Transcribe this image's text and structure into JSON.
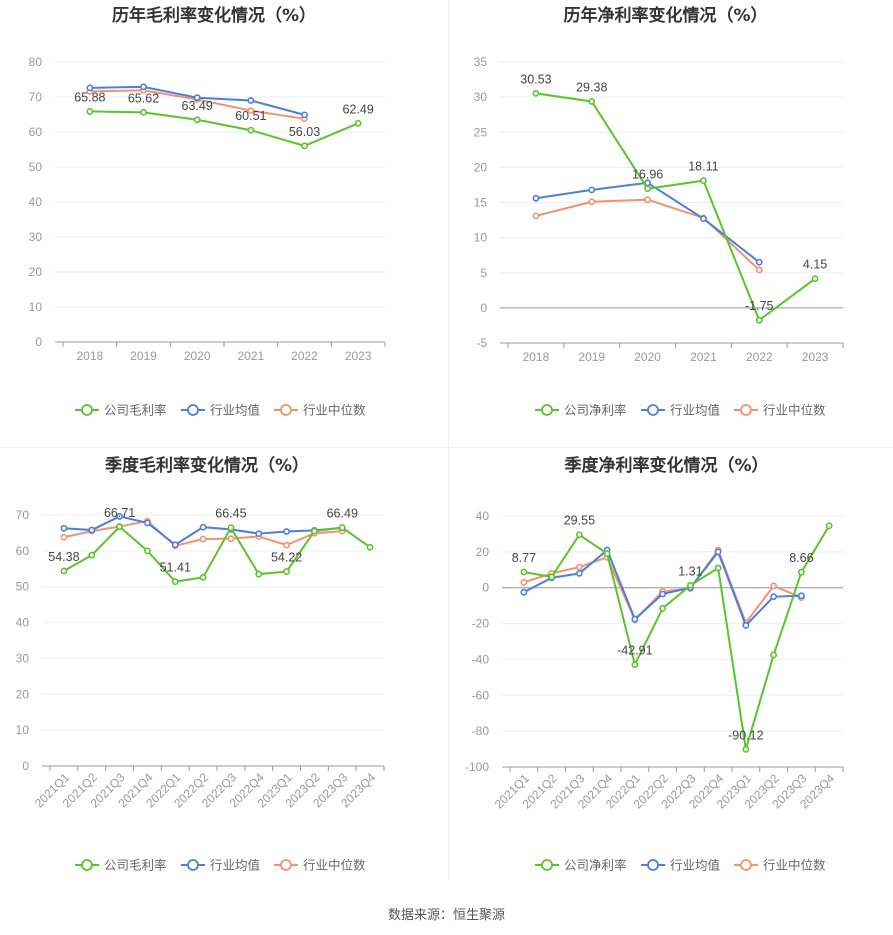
{
  "source_text": "数据来源：恒生聚源",
  "colors": {
    "company": "#5cc42b",
    "avg": "#4a7fe0",
    "median": "#f5926e"
  },
  "chart_data": [
    {
      "type": "line",
      "title": "历年毛利率变化情况（%）",
      "x": [
        "2018",
        "2019",
        "2020",
        "2021",
        "2022",
        "2023"
      ],
      "ylim": [
        0,
        80
      ],
      "yticks": [
        0,
        10,
        20,
        30,
        40,
        50,
        60,
        70,
        80
      ],
      "grid": true,
      "legend_position": "bottom",
      "series": [
        {
          "name": "公司毛利率",
          "values": [
            65.88,
            65.62,
            63.49,
            60.51,
            56.03,
            62.49
          ]
        },
        {
          "name": "行业均值",
          "values": [
            72.6,
            72.9,
            69.8,
            69.0,
            64.9,
            null
          ]
        },
        {
          "name": "行业中位数",
          "values": [
            71.6,
            71.9,
            69.3,
            66.1,
            63.8,
            null
          ]
        }
      ],
      "data_labels": [
        "65.88",
        "65.62",
        "63.49",
        "60.51",
        "56.03",
        "62.49"
      ]
    },
    {
      "type": "line",
      "title": "历年净利率变化情况（%）",
      "x": [
        "2018",
        "2019",
        "2020",
        "2021",
        "2022",
        "2023"
      ],
      "ylim": [
        -5,
        35
      ],
      "yticks": [
        -5,
        0,
        5,
        10,
        15,
        20,
        25,
        30,
        35
      ],
      "grid": true,
      "legend_position": "bottom",
      "series": [
        {
          "name": "公司净利率",
          "values": [
            30.53,
            29.38,
            16.96,
            18.11,
            -1.75,
            4.15
          ]
        },
        {
          "name": "行业均值",
          "values": [
            15.6,
            16.8,
            17.8,
            12.7,
            6.5,
            null
          ]
        },
        {
          "name": "行业中位数",
          "values": [
            13.1,
            15.1,
            15.4,
            12.8,
            5.4,
            null
          ]
        }
      ],
      "data_labels": [
        "30.53",
        "29.38",
        "16.96",
        "18.11",
        "-1.75",
        "4.15"
      ]
    },
    {
      "type": "line",
      "title": "季度毛利率变化情况（%）",
      "x": [
        "2021Q1",
        "2021Q2",
        "2021Q3",
        "2021Q4",
        "2022Q1",
        "2022Q2",
        "2022Q3",
        "2022Q4",
        "2023Q1",
        "2023Q2",
        "2023Q3",
        "2023Q4"
      ],
      "ylim": [
        0,
        70
      ],
      "yticks": [
        0,
        10,
        20,
        30,
        40,
        50,
        60,
        70
      ],
      "grid": true,
      "legend_position": "bottom",
      "series": [
        {
          "name": "公司毛利率",
          "values": [
            54.38,
            58.8,
            66.71,
            60.0,
            51.41,
            52.6,
            66.45,
            53.5,
            54.22,
            65.5,
            66.49,
            61.0
          ]
        },
        {
          "name": "行业均值",
          "values": [
            66.3,
            65.8,
            69.6,
            67.8,
            61.7,
            66.6,
            66.0,
            64.8,
            65.4,
            65.7,
            66.4,
            null
          ]
        },
        {
          "name": "行业中位数",
          "values": [
            63.8,
            65.5,
            66.8,
            68.3,
            61.4,
            63.3,
            63.4,
            64.0,
            61.6,
            64.9,
            65.5,
            null
          ]
        }
      ],
      "data_labels": [
        "54.38",
        "",
        "66.71",
        "",
        "51.41",
        "",
        "66.45",
        "",
        "54.22",
        "",
        "66.49",
        ""
      ]
    },
    {
      "type": "line",
      "title": "季度净利率变化情况（%）",
      "x": [
        "2021Q1",
        "2021Q2",
        "2021Q3",
        "2021Q4",
        "2022Q1",
        "2022Q2",
        "2022Q3",
        "2022Q4",
        "2023Q1",
        "2023Q2",
        "2023Q3",
        "2023Q4"
      ],
      "ylim": [
        -100,
        40
      ],
      "yticks": [
        -100,
        -80,
        -60,
        -40,
        -20,
        0,
        20,
        40
      ],
      "grid": true,
      "legend_position": "bottom",
      "series": [
        {
          "name": "公司净利率",
          "values": [
            8.77,
            6.0,
            29.55,
            19.0,
            -42.91,
            -11.5,
            1.31,
            11.0,
            -90.12,
            -37.5,
            8.66,
            34.5
          ]
        },
        {
          "name": "行业均值",
          "values": [
            -2.5,
            5.5,
            8.0,
            21.0,
            -17.5,
            -3.5,
            0.0,
            20.0,
            -21.0,
            -5.0,
            -4.5,
            null
          ]
        },
        {
          "name": "行业中位数",
          "values": [
            3.0,
            8.0,
            11.5,
            17.0,
            -18.0,
            -2.0,
            -0.5,
            21.0,
            -19.5,
            1.0,
            -5.5,
            null
          ]
        }
      ],
      "data_labels": [
        "8.77",
        "",
        "29.55",
        "",
        "-42.91",
        "",
        "1.31",
        "",
        "-90.12",
        "",
        "8.66",
        ""
      ]
    }
  ]
}
